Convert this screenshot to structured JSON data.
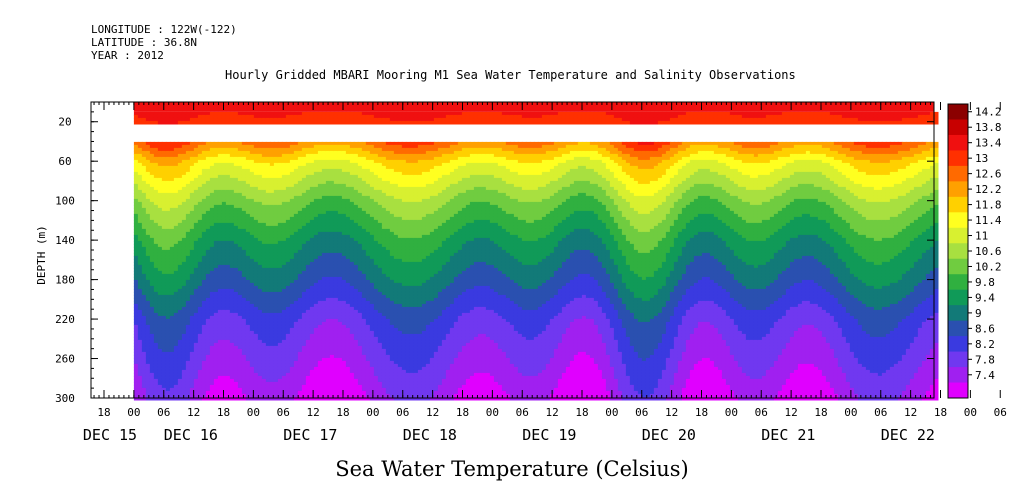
{
  "header": {
    "longitude": "LONGITUDE : 122W(-122)",
    "latitude": "LATITUDE : 36.8N",
    "year": "YEAR : 2012"
  },
  "chart_data": {
    "type": "heatmap",
    "title": "Hourly Gridded MBARI Mooring M1 Sea Water Temperature and Salinity Observations",
    "ylabel": "DEPTH (m)",
    "colorbar_label": "Sea Water Temperature (Celsius)",
    "ylim": [
      300,
      0
    ],
    "yticks": [
      "20",
      "60",
      "100",
      "140",
      "180",
      "220",
      "260",
      "300"
    ],
    "x_hour_labels": [
      "18",
      "00",
      "06",
      "12",
      "18",
      "00",
      "06",
      "12",
      "18",
      "00",
      "06",
      "12",
      "18",
      "00",
      "06",
      "12",
      "18",
      "00",
      "06",
      "12",
      "18",
      "00",
      "06",
      "12",
      "18",
      "00",
      "06",
      "12",
      "18",
      "00",
      "06",
      "12"
    ],
    "x_day_labels": [
      "DEC 15",
      "DEC 16",
      "DEC 17",
      "DEC 18",
      "DEC 19",
      "DEC 20",
      "DEC 21",
      "DEC 22"
    ],
    "colorbar_levels": [
      "14.2",
      "13.8",
      "13.4",
      "13",
      "12.6",
      "12.2",
      "11.8",
      "11.4",
      "11",
      "10.6",
      "10.2",
      "9.8",
      "9.4",
      "9",
      "8.6",
      "8.2",
      "7.8",
      "7.4"
    ],
    "colorbar_colors": [
      "#8b0000",
      "#c80000",
      "#f01010",
      "#ff3000",
      "#ff6a00",
      "#ffa000",
      "#ffd000",
      "#ffff20",
      "#d8f030",
      "#a8e040",
      "#70cc40",
      "#30b040",
      "#109a58",
      "#127a78",
      "#2a50b0",
      "#3a3ae0",
      "#7038f0",
      "#a020f0",
      "#e000ff"
    ],
    "data_start": "DEC 16 00",
    "data_end": "DEC 22 18",
    "depth_range": [
      10,
      300
    ],
    "gap_depth_range": [
      20,
      40
    ],
    "profile": [
      {
        "depth": 10,
        "temp": 13.3
      },
      {
        "depth": 40,
        "temp": 12.6
      },
      {
        "depth": 60,
        "temp": 11.6
      },
      {
        "depth": 100,
        "temp": 10.5
      },
      {
        "depth": 140,
        "temp": 9.7
      },
      {
        "depth": 180,
        "temp": 9.1
      },
      {
        "depth": 220,
        "temp": 8.4
      },
      {
        "depth": 260,
        "temp": 8.0
      },
      {
        "depth": 300,
        "temp": 7.6
      }
    ]
  }
}
